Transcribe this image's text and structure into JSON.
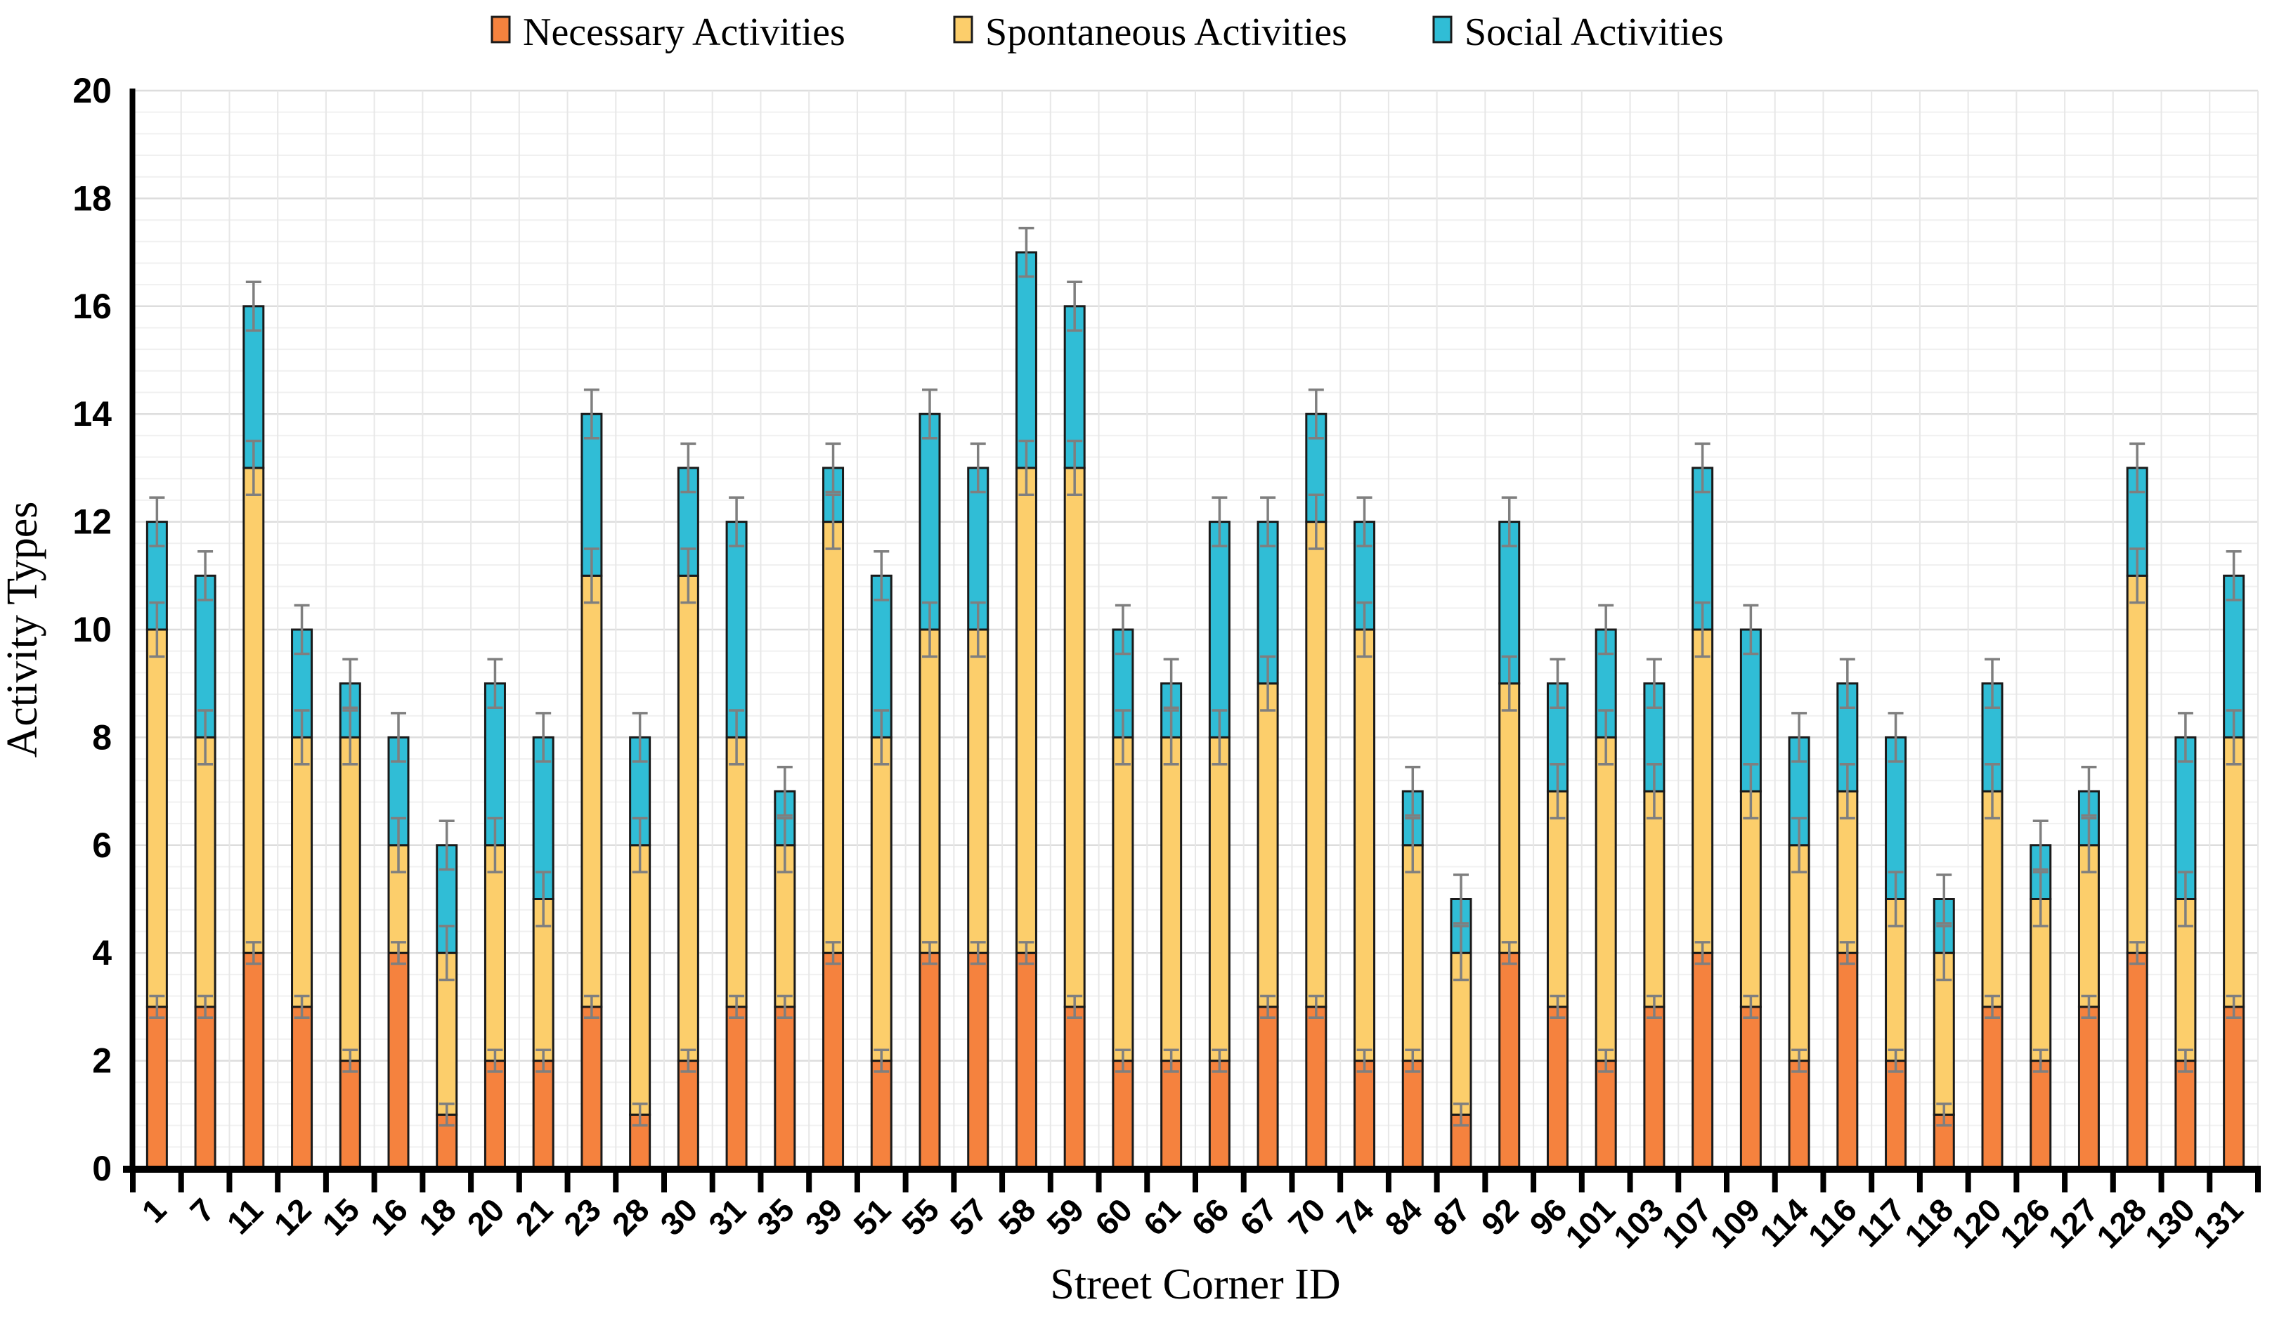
{
  "chart_data": {
    "type": "bar",
    "stacked": true,
    "title": "",
    "xlabel": "Street Corner ID",
    "ylabel": "Activity Types",
    "ylim": [
      0,
      20
    ],
    "ytick_step": 2,
    "y_minor_step": 0.4,
    "grid": {
      "horizontal": true,
      "vertical": true
    },
    "legend_position": "top",
    "categories": [
      "1",
      "7",
      "11",
      "12",
      "15",
      "16",
      "18",
      "20",
      "21",
      "23",
      "28",
      "30",
      "31",
      "35",
      "39",
      "51",
      "55",
      "57",
      "58",
      "59",
      "60",
      "61",
      "66",
      "67",
      "70",
      "74",
      "84",
      "87",
      "92",
      "96",
      "101",
      "103",
      "107",
      "109",
      "114",
      "116",
      "117",
      "118",
      "120",
      "126",
      "127",
      "128",
      "130",
      "131"
    ],
    "series": [
      {
        "name": "Necessary Activities",
        "color": "#F5823E",
        "error": 0.2,
        "values": [
          3,
          3,
          4,
          3,
          2,
          4,
          1,
          2,
          2,
          3,
          1,
          2,
          3,
          3,
          4,
          2,
          4,
          4,
          4,
          3,
          2,
          2,
          2,
          3,
          3,
          2,
          2,
          1,
          4,
          3,
          2,
          3,
          4,
          3,
          2,
          4,
          2,
          1,
          3,
          2,
          3,
          4,
          2,
          3
        ]
      },
      {
        "name": "Spontaneous Activities",
        "color": "#FCCE6B",
        "error": 0.5,
        "values": [
          7,
          5,
          9,
          5,
          6,
          2,
          3,
          4,
          3,
          8,
          5,
          9,
          5,
          3,
          8,
          6,
          6,
          6,
          9,
          10,
          6,
          6,
          6,
          6,
          9,
          8,
          4,
          3,
          5,
          4,
          6,
          4,
          6,
          4,
          4,
          3,
          3,
          3,
          4,
          3,
          3,
          7,
          3,
          5
        ]
      },
      {
        "name": "Social Activities",
        "color": "#30BDD6",
        "error": 0.45,
        "values": [
          2,
          3,
          3,
          2,
          1,
          2,
          2,
          3,
          3,
          3,
          2,
          2,
          4,
          1,
          1,
          3,
          4,
          3,
          4,
          3,
          2,
          1,
          4,
          3,
          2,
          2,
          1,
          1,
          3,
          2,
          2,
          2,
          3,
          3,
          2,
          2,
          3,
          1,
          2,
          1,
          1,
          2,
          3,
          3
        ]
      }
    ],
    "totals": [
      12,
      11,
      16,
      10,
      9,
      8,
      6,
      9,
      8,
      14,
      8,
      13,
      12,
      7,
      13,
      11,
      14,
      13,
      17,
      16,
      10,
      9,
      12,
      12,
      14,
      12,
      7,
      5,
      12,
      9,
      10,
      9,
      13,
      10,
      8,
      9,
      8,
      5,
      9,
      6,
      7,
      13,
      8,
      11
    ],
    "ytick_labels": [
      "0",
      "2",
      "4",
      "6",
      "8",
      "10",
      "12",
      "14",
      "16",
      "18",
      "20"
    ],
    "error_bar_color": "#7F7F7F",
    "bar_outline_color": "#1A1A1A",
    "axis_color": "#000000",
    "major_grid_color": "#DDDDDD",
    "minor_grid_color": "#F0F0F0",
    "vertical_grid_color": "#E7E7E7"
  }
}
